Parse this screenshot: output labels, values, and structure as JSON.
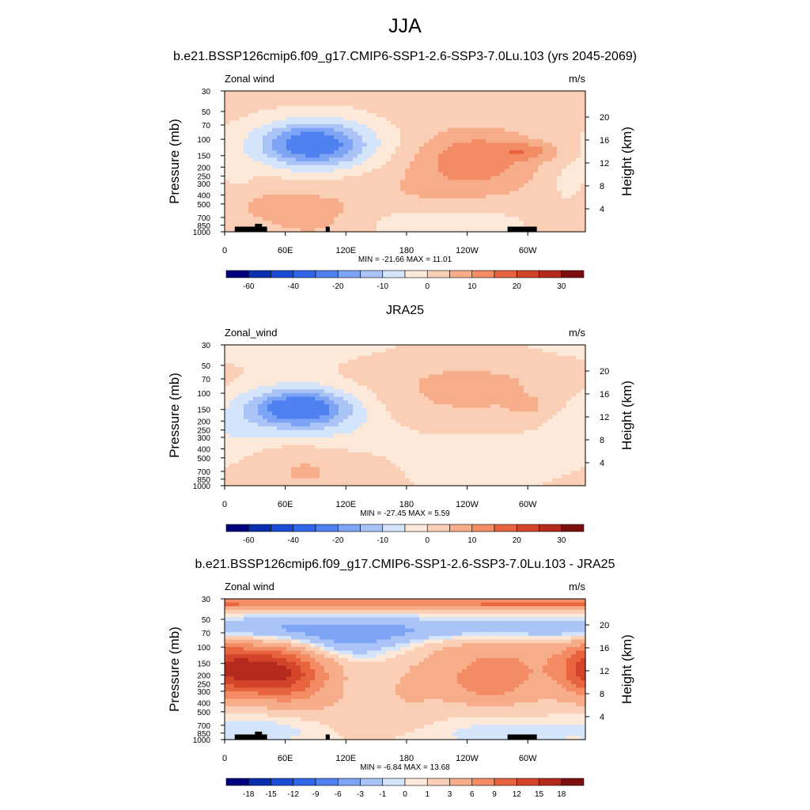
{
  "page_title": "JJA",
  "colors": {
    "wind_scale": [
      "#000080",
      "#0a2fae",
      "#1a4bd4",
      "#2f66ea",
      "#4f82f0",
      "#7ea4f5",
      "#abc4f8",
      "#d4e4fb",
      "#fde9d9",
      "#fbcfb5",
      "#f7ad8a",
      "#f38c64",
      "#e8643f",
      "#d4442a",
      "#b52a1c",
      "#7d0f0f"
    ],
    "diff_scale": [
      "#000080",
      "#0a2fae",
      "#1a4bd4",
      "#2f66ea",
      "#4f82f0",
      "#7ea4f5",
      "#abc4f8",
      "#d4e4fb",
      "#fde9d9",
      "#fbcfb5",
      "#f7ad8a",
      "#f38c64",
      "#e8643f",
      "#d4442a",
      "#b52a1c",
      "#7d0f0f"
    ],
    "topography": "#000000"
  },
  "chart_data": [
    {
      "type": "heatmap",
      "title": "b.e21.BSSP126cmip6.f09_g17.CMIP6-SSP1-2.6-SSP3-7.0Lu.103 (yrs 2045-2069)",
      "left_label": "Zonal wind",
      "units": "m/s",
      "ylabel": "Pressure (mb)",
      "y2label": "Height (km)",
      "x_ticks": [
        "0",
        "60E",
        "120E",
        "180",
        "120W",
        "60W"
      ],
      "x_tick_lon": [
        0,
        60,
        120,
        180,
        240,
        300
      ],
      "xlim": [
        0,
        357
      ],
      "p_ticks": [
        "30",
        "50",
        "70",
        "100",
        "150",
        "200",
        "250",
        "300",
        "400",
        "500",
        "700",
        "850",
        "1000"
      ],
      "p_tick_values": [
        30,
        50,
        70,
        100,
        150,
        200,
        250,
        300,
        400,
        500,
        700,
        850,
        1000
      ],
      "ylim": [
        30,
        1000
      ],
      "y_scale": "log",
      "km_ticks": [
        "20",
        "16",
        "12",
        "8",
        "4"
      ],
      "km_tick_values": [
        20,
        16,
        12,
        8,
        4
      ],
      "stats": "MIN = -21.66  MAX =  11.01",
      "colorbar_labels": [
        "-60",
        "-40",
        "-20",
        "-10",
        "0",
        "10",
        "20",
        "30"
      ],
      "levels": [
        -70,
        -60,
        -50,
        -40,
        -30,
        -20,
        -15,
        -10,
        -5,
        0,
        5,
        10,
        15,
        20,
        25,
        30,
        35
      ],
      "background": 2,
      "topography": true,
      "features": [
        {
          "lon": 0,
          "p": 30,
          "dlon": 400,
          "dp": 0.75,
          "a": 0
        },
        {
          "lon": 88,
          "p": 112,
          "dlon": 35,
          "dp": 0.38,
          "a": -20
        },
        {
          "lon": 88,
          "p": 125,
          "dlon": 55,
          "dp": 0.55,
          "a": -9
        },
        {
          "lon": 248,
          "p": 150,
          "dlon": 38,
          "dp": 0.45,
          "a": 10
        },
        {
          "lon": 300,
          "p": 135,
          "dlon": 20,
          "dp": 0.16,
          "a": 8
        },
        {
          "lon": 225,
          "p": 330,
          "dlon": 55,
          "dp": 0.65,
          "a": 5
        },
        {
          "lon": 85,
          "p": 560,
          "dlon": 40,
          "dp": 0.7,
          "a": 4
        },
        {
          "lon": 30,
          "p": 500,
          "dlon": 25,
          "dp": 0.4,
          "a": 2
        },
        {
          "lon": 240,
          "p": 780,
          "dlon": 45,
          "dp": 0.4,
          "a": -6
        },
        {
          "lon": 170,
          "p": 850,
          "dlon": 25,
          "dp": 0.3,
          "a": -4
        },
        {
          "lon": 340,
          "p": 300,
          "dlon": 12,
          "dp": 0.4,
          "a": -4
        },
        {
          "lon": 15,
          "p": 250,
          "dlon": 10,
          "dp": 0.3,
          "a": -3
        }
      ]
    },
    {
      "type": "heatmap",
      "title": "JRA25",
      "left_label": "Zonal_wind",
      "units": "m/s",
      "ylabel": "Pressure (mb)",
      "y2label": "Height (km)",
      "x_ticks": [
        "0",
        "60E",
        "120E",
        "180",
        "120W",
        "60W"
      ],
      "x_tick_lon": [
        0,
        60,
        120,
        180,
        240,
        300
      ],
      "xlim": [
        0,
        357
      ],
      "p_ticks": [
        "30",
        "50",
        "70",
        "100",
        "150",
        "200",
        "250",
        "300",
        "400",
        "500",
        "700",
        "850",
        "1000"
      ],
      "p_tick_values": [
        30,
        50,
        70,
        100,
        150,
        200,
        250,
        300,
        400,
        500,
        700,
        850,
        1000
      ],
      "ylim": [
        30,
        1000
      ],
      "y_scale": "log",
      "km_ticks": [
        "20",
        "16",
        "12",
        "8",
        "4"
      ],
      "km_tick_values": [
        20,
        16,
        12,
        8,
        4
      ],
      "stats": "MIN = -27.45  MAX =   5.59",
      "colorbar_labels": [
        "-60",
        "-40",
        "-20",
        "-10",
        "0",
        "10",
        "20",
        "30"
      ],
      "levels": [
        -70,
        -60,
        -50,
        -40,
        -30,
        -20,
        -15,
        -10,
        -5,
        0,
        5,
        10,
        15,
        20,
        25,
        30,
        35
      ],
      "background": 2,
      "topography": false,
      "features": [
        {
          "lon": 0,
          "p": 30,
          "dlon": 400,
          "dp": 0.45,
          "a": -4
        },
        {
          "lon": 75,
          "p": 145,
          "dlon": 35,
          "dp": 0.33,
          "a": -22
        },
        {
          "lon": 70,
          "p": 160,
          "dlon": 60,
          "dp": 0.6,
          "a": -8
        },
        {
          "lon": 240,
          "p": 90,
          "dlon": 75,
          "dp": 0.95,
          "a": 5
        },
        {
          "lon": 300,
          "p": 140,
          "dlon": 12,
          "dp": 0.15,
          "a": 4
        },
        {
          "lon": 250,
          "p": 480,
          "dlon": 60,
          "dp": 0.7,
          "a": -6
        },
        {
          "lon": 0,
          "p": 300,
          "dlon": 30,
          "dp": 0.5,
          "a": -4
        },
        {
          "lon": 80,
          "p": 620,
          "dlon": 40,
          "dp": 0.5,
          "a": 4
        },
        {
          "lon": 130,
          "p": 300,
          "dlon": 40,
          "dp": 0.35,
          "a": -3
        }
      ]
    },
    {
      "type": "heatmap",
      "title": "b.e21.BSSP126cmip6.f09_g17.CMIP6-SSP1-2.6-SSP3-7.0Lu.103 - JRA25",
      "left_label": "Zonal wind",
      "units": "m/s",
      "ylabel": "Pressure (mb)",
      "y2label": "Height (km)",
      "x_ticks": [
        "0",
        "60E",
        "120E",
        "180",
        "120W",
        "60W"
      ],
      "x_tick_lon": [
        0,
        60,
        120,
        180,
        240,
        300
      ],
      "xlim": [
        0,
        357
      ],
      "p_ticks": [
        "30",
        "50",
        "70",
        "100",
        "150",
        "200",
        "250",
        "300",
        "400",
        "500",
        "700",
        "850",
        "1000"
      ],
      "p_tick_values": [
        30,
        50,
        70,
        100,
        150,
        200,
        250,
        300,
        400,
        500,
        700,
        850,
        1000
      ],
      "ylim": [
        30,
        1000
      ],
      "y_scale": "log",
      "km_ticks": [
        "20",
        "16",
        "12",
        "8",
        "4"
      ],
      "km_tick_values": [
        20,
        16,
        12,
        8,
        4
      ],
      "stats": "MIN =  -6.84  MAX =  13.68",
      "colorbar_labels": [
        "-18",
        "-15",
        "-12",
        "-9",
        "-6",
        "-3",
        "-1",
        "0",
        "1",
        "3",
        "6",
        "9",
        "12",
        "15",
        "18"
      ],
      "levels": [
        -21,
        -18,
        -15,
        -12,
        -9,
        -6,
        -3,
        -1,
        0,
        1,
        3,
        6,
        9,
        12,
        15,
        18,
        21
      ],
      "background": 0.5,
      "topography": true,
      "features": [
        {
          "lon": 0,
          "p": 33,
          "dlon": 400,
          "dp": 0.12,
          "a": 9
        },
        {
          "lon": 0,
          "p": 65,
          "dlon": 400,
          "dp": 0.22,
          "a": -4.5
        },
        {
          "lon": 120,
          "p": 95,
          "dlon": 40,
          "dp": 0.25,
          "a": -3
        },
        {
          "lon": 40,
          "p": 180,
          "dlon": 35,
          "dp": 0.45,
          "a": 14
        },
        {
          "lon": 0,
          "p": 160,
          "dlon": 20,
          "dp": 0.5,
          "a": 6
        },
        {
          "lon": 75,
          "p": 240,
          "dlon": 30,
          "dp": 0.55,
          "a": 4
        },
        {
          "lon": 270,
          "p": 170,
          "dlon": 55,
          "dp": 0.7,
          "a": 6
        },
        {
          "lon": 260,
          "p": 250,
          "dlon": 20,
          "dp": 0.25,
          "a": 3
        },
        {
          "lon": 180,
          "p": 300,
          "dlon": 25,
          "dp": 0.5,
          "a": 1.5
        },
        {
          "lon": 60,
          "p": 700,
          "dlon": 60,
          "dp": 0.3,
          "a": -1.5
        },
        {
          "lon": 270,
          "p": 800,
          "dlon": 40,
          "dp": 0.3,
          "a": -1.5
        },
        {
          "lon": 130,
          "p": 600,
          "dlon": 35,
          "dp": 0.4,
          "a": 2
        }
      ]
    }
  ]
}
